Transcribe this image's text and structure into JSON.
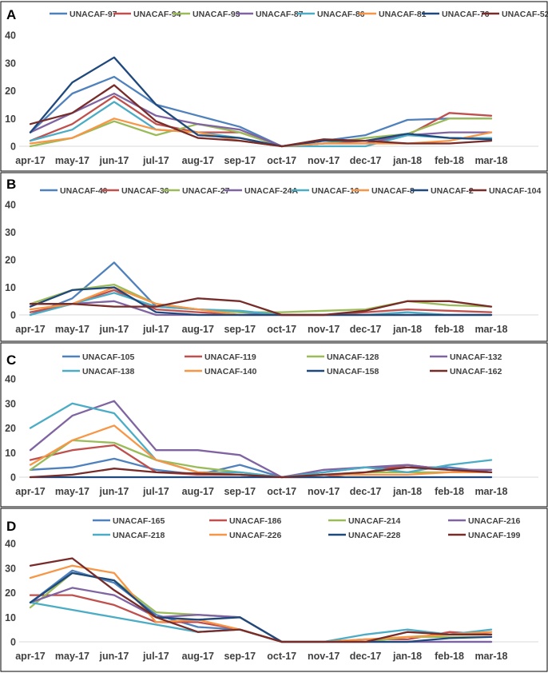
{
  "chart_data": [
    {
      "type": "line",
      "panel": "A",
      "categories": [
        "apr-17",
        "may-17",
        "jun-17",
        "jul-17",
        "aug-17",
        "sep-17",
        "oct-17",
        "nov-17",
        "dec-17",
        "jan-18",
        "feb-18",
        "mar-18"
      ],
      "ylim": [
        0,
        40
      ],
      "yticks": [
        0,
        10,
        20,
        30,
        40
      ],
      "grid": false,
      "legend_position": "top",
      "series": [
        {
          "name": "UNACAF-97",
          "color": "#4f81bd",
          "values": [
            5,
            19,
            25,
            15,
            11,
            7,
            0,
            2,
            4,
            9.5,
            10,
            10
          ]
        },
        {
          "name": "UNACAF-94",
          "color": "#c0504d",
          "values": [
            2,
            8,
            18,
            8,
            5,
            5,
            0,
            1,
            2,
            4,
            12,
            11
          ]
        },
        {
          "name": "UNACAF-93",
          "color": "#9bbb59",
          "values": [
            0,
            3,
            9,
            4,
            8,
            5,
            0,
            1,
            3,
            4.5,
            10,
            10
          ]
        },
        {
          "name": "UNACAF-87",
          "color": "#8064a2",
          "values": [
            5,
            12,
            19,
            11,
            8,
            6,
            0,
            1,
            1,
            4,
            5,
            5
          ]
        },
        {
          "name": "UNACAF-86",
          "color": "#4bacc6",
          "values": [
            2,
            6,
            16,
            6,
            5,
            3,
            0,
            0,
            0,
            4,
            3,
            3
          ]
        },
        {
          "name": "UNACAF-81",
          "color": "#f79646",
          "values": [
            1,
            3,
            10,
            6,
            5,
            2,
            0,
            1,
            1,
            1,
            2,
            5
          ]
        },
        {
          "name": "UNACAF-76",
          "color": "#1f497d",
          "values": [
            5,
            23,
            32,
            15,
            4,
            3,
            0,
            2,
            2,
            4.5,
            3,
            2.5
          ]
        },
        {
          "name": "UNACAF-52",
          "color": "#772c2a",
          "values": [
            8,
            12,
            22,
            9,
            3,
            2,
            0,
            2.5,
            2,
            1,
            1,
            2
          ]
        }
      ]
    },
    {
      "type": "line",
      "panel": "B",
      "categories": [
        "apr-17",
        "may-17",
        "jun-17",
        "jul-17",
        "aug-17",
        "sep-17",
        "oct-17",
        "nov-17",
        "dec-17",
        "jan-18",
        "feb-18",
        "mar-18"
      ],
      "ylim": [
        0,
        40
      ],
      "yticks": [
        0,
        10,
        20,
        30,
        40
      ],
      "grid": false,
      "legend_position": "top",
      "series": [
        {
          "name": "UNACAF-40",
          "color": "#4f81bd",
          "values": [
            0,
            6,
            19,
            3,
            2,
            1,
            0,
            0,
            0,
            0,
            0,
            0
          ]
        },
        {
          "name": "UNACAF-36",
          "color": "#c0504d",
          "values": [
            1,
            4,
            9,
            2,
            1,
            0,
            0,
            0,
            1,
            2,
            1.5,
            1
          ]
        },
        {
          "name": "UNACAF-27",
          "color": "#9bbb59",
          "values": [
            4,
            9,
            11,
            4,
            2,
            1,
            1,
            1.5,
            2,
            5,
            3.5,
            3
          ]
        },
        {
          "name": "UNACAF-24A",
          "color": "#8064a2",
          "values": [
            4,
            4,
            5,
            0,
            0,
            0,
            0,
            0,
            0,
            0,
            0,
            0
          ]
        },
        {
          "name": "UNACAF-16",
          "color": "#4bacc6",
          "values": [
            0,
            4,
            8,
            3,
            2,
            1.5,
            0,
            0,
            0,
            1,
            0,
            0
          ]
        },
        {
          "name": "UNACAF-8",
          "color": "#f79646",
          "values": [
            2,
            4,
            10,
            4,
            2,
            0,
            0,
            0,
            0,
            0,
            0,
            0
          ]
        },
        {
          "name": "UNACAF-2",
          "color": "#1f497d",
          "values": [
            3,
            9,
            10,
            1,
            0,
            0,
            0,
            0,
            0,
            0,
            0,
            0
          ]
        },
        {
          "name": "UNACAF-104",
          "color": "#772c2a",
          "values": [
            4,
            4,
            3,
            3,
            6,
            5,
            0,
            0,
            1.5,
            5,
            5,
            3
          ]
        }
      ]
    },
    {
      "type": "line",
      "panel": "C",
      "categories": [
        "apr-17",
        "may-17",
        "jun-17",
        "jul-17",
        "aug-17",
        "sep-17",
        "oct-17",
        "nov-17",
        "dec-17",
        "jan-18",
        "feb-18",
        "mar-18"
      ],
      "ylim": [
        0,
        40
      ],
      "yticks": [
        0,
        10,
        20,
        30,
        40
      ],
      "grid": false,
      "legend_position": "top",
      "series": [
        {
          "name": "UNACAF-105",
          "color": "#4f81bd",
          "values": [
            3,
            4,
            7.5,
            3,
            1,
            5,
            0,
            2,
            4,
            4,
            4,
            2
          ]
        },
        {
          "name": "UNACAF-119",
          "color": "#c0504d",
          "values": [
            7,
            11,
            13,
            2,
            1,
            1,
            0,
            0,
            2,
            5,
            3,
            2
          ]
        },
        {
          "name": "UNACAF-128",
          "color": "#9bbb59",
          "values": [
            3,
            15,
            14,
            7,
            4,
            2,
            0,
            1,
            2,
            2,
            2,
            2
          ]
        },
        {
          "name": "UNACAF-132",
          "color": "#8064a2",
          "values": [
            11,
            25,
            31,
            11,
            11,
            9,
            0,
            3,
            4,
            5,
            3,
            3
          ]
        },
        {
          "name": "UNACAF-138",
          "color": "#4bacc6",
          "values": [
            20,
            30,
            26,
            7,
            2,
            2,
            0,
            2,
            4,
            2,
            5,
            7
          ]
        },
        {
          "name": "UNACAF-140",
          "color": "#f79646",
          "values": [
            5,
            15,
            21,
            7,
            2,
            1,
            0,
            1,
            1,
            1,
            2,
            2
          ]
        },
        {
          "name": "UNACAF-158",
          "color": "#1f497d",
          "values": [
            0,
            0,
            0,
            0,
            0,
            0,
            0,
            0,
            0,
            0,
            0,
            0
          ]
        },
        {
          "name": "UNACAF-162",
          "color": "#772c2a",
          "values": [
            0,
            1,
            3.5,
            2,
            1.5,
            1,
            0,
            1,
            2,
            4,
            3,
            2
          ]
        }
      ]
    },
    {
      "type": "line",
      "panel": "D",
      "categories": [
        "apr-17",
        "may-17",
        "jun-17",
        "jul-17",
        "aug-17",
        "sep-17",
        "oct-17",
        "nov-17",
        "dec-17",
        "jan-18",
        "feb-18",
        "mar-18"
      ],
      "ylim": [
        0,
        40
      ],
      "yticks": [
        0,
        10,
        20,
        30,
        40
      ],
      "grid": false,
      "legend_position": "top",
      "series": [
        {
          "name": "UNACAF-165",
          "color": "#4f81bd",
          "values": [
            16,
            29,
            24,
            11,
            6,
            5,
            0,
            0,
            0,
            0,
            0,
            0
          ]
        },
        {
          "name": "UNACAF-186",
          "color": "#c0504d",
          "values": [
            19,
            19,
            15,
            8,
            8,
            5,
            0,
            0,
            1,
            1,
            4,
            3
          ]
        },
        {
          "name": "UNACAF-214",
          "color": "#9bbb59",
          "values": [
            14,
            28,
            25,
            12,
            11,
            10,
            0,
            0,
            0,
            2,
            2,
            2
          ]
        },
        {
          "name": "UNACAF-216",
          "color": "#8064a2",
          "values": [
            16,
            22,
            19,
            10,
            11,
            10,
            0,
            0,
            0,
            0,
            0,
            0
          ]
        },
        {
          "name": "UNACAF-218",
          "color": "#4bacc6",
          "values": [
            16,
            13,
            10,
            7,
            4,
            5,
            0,
            0,
            3,
            5,
            3,
            5
          ]
        },
        {
          "name": "UNACAF-226",
          "color": "#f79646",
          "values": [
            26,
            31,
            28,
            8,
            9,
            5,
            0,
            0,
            1,
            2,
            3,
            4
          ]
        },
        {
          "name": "UNACAF-228",
          "color": "#1f497d",
          "values": [
            16,
            28,
            25,
            10,
            9,
            10,
            0,
            0,
            0,
            0,
            1.5,
            2
          ]
        },
        {
          "name": "UNACAF-199",
          "color": "#772c2a",
          "values": [
            31,
            34,
            21,
            10,
            4,
            5,
            0,
            0,
            0,
            4,
            3,
            3
          ]
        }
      ]
    }
  ]
}
